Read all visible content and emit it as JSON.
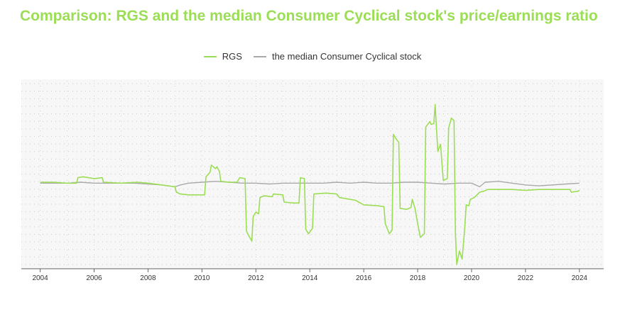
{
  "chart_data": {
    "type": "line",
    "title": "Comparison: RGS and the median Consumer Cyclical stock's price/earnings ratio",
    "xlabel": "",
    "ylabel": "",
    "xlim": [
      2003.3,
      2024.9
    ],
    "ylim": [
      -9,
      11
    ],
    "x_ticks": [
      "2004",
      "2006",
      "2008",
      "2010",
      "2012",
      "2014",
      "2016",
      "2018",
      "2020",
      "2022",
      "2024"
    ],
    "grid": true,
    "legend_position": "top-center",
    "series": [
      {
        "name": "RGS",
        "color": "#9bde55",
        "points": [
          [
            2004.0,
            0.1
          ],
          [
            2004.5,
            0.1
          ],
          [
            2005.0,
            0.0
          ],
          [
            2005.35,
            0.0
          ],
          [
            2005.4,
            0.6
          ],
          [
            2005.6,
            0.7
          ],
          [
            2006.0,
            0.5
          ],
          [
            2006.3,
            0.6
          ],
          [
            2006.35,
            0.1
          ],
          [
            2007.0,
            0.0
          ],
          [
            2007.6,
            0.1
          ],
          [
            2008.0,
            0.0
          ],
          [
            2008.5,
            -0.2
          ],
          [
            2009.0,
            -0.4
          ],
          [
            2009.05,
            -1.0
          ],
          [
            2009.2,
            -1.2
          ],
          [
            2009.5,
            -1.3
          ],
          [
            2010.1,
            -1.3
          ],
          [
            2010.15,
            0.7
          ],
          [
            2010.3,
            1.2
          ],
          [
            2010.35,
            2.0
          ],
          [
            2010.5,
            1.6
          ],
          [
            2010.55,
            1.8
          ],
          [
            2010.65,
            1.3
          ],
          [
            2010.7,
            0.2
          ],
          [
            2011.0,
            0.1
          ],
          [
            2011.3,
            0.1
          ],
          [
            2011.4,
            0.6
          ],
          [
            2011.6,
            0.5
          ],
          [
            2011.65,
            -5.3
          ],
          [
            2011.75,
            -5.9
          ],
          [
            2011.85,
            -6.4
          ],
          [
            2011.9,
            -3.7
          ],
          [
            2012.0,
            -3.2
          ],
          [
            2012.1,
            -3.4
          ],
          [
            2012.15,
            -1.6
          ],
          [
            2012.3,
            -1.4
          ],
          [
            2012.6,
            -1.5
          ],
          [
            2012.65,
            -1.2
          ],
          [
            2013.0,
            -1.3
          ],
          [
            2013.05,
            -2.1
          ],
          [
            2013.4,
            -2.2
          ],
          [
            2013.6,
            -2.2
          ],
          [
            2013.65,
            0.6
          ],
          [
            2013.8,
            0.5
          ],
          [
            2013.85,
            -5.1
          ],
          [
            2013.95,
            -5.6
          ],
          [
            2014.1,
            -5.0
          ],
          [
            2014.15,
            -1.2
          ],
          [
            2014.6,
            -1.1
          ],
          [
            2015.0,
            -1.2
          ],
          [
            2015.1,
            -1.6
          ],
          [
            2015.5,
            -1.8
          ],
          [
            2015.7,
            -1.9
          ],
          [
            2016.0,
            -2.4
          ],
          [
            2016.5,
            -2.5
          ],
          [
            2016.75,
            -2.6
          ],
          [
            2016.8,
            -4.5
          ],
          [
            2016.95,
            -5.6
          ],
          [
            2017.05,
            -5.2
          ],
          [
            2017.1,
            5.4
          ],
          [
            2017.2,
            4.9
          ],
          [
            2017.3,
            4.5
          ],
          [
            2017.35,
            -2.8
          ],
          [
            2017.6,
            -2.9
          ],
          [
            2017.75,
            -2.7
          ],
          [
            2017.8,
            -1.8
          ],
          [
            2017.9,
            -2.8
          ],
          [
            2018.0,
            -4.5
          ],
          [
            2018.1,
            -6.0
          ],
          [
            2018.25,
            -5.6
          ],
          [
            2018.3,
            6.2
          ],
          [
            2018.45,
            6.8
          ],
          [
            2018.5,
            6.5
          ],
          [
            2018.6,
            6.6
          ],
          [
            2018.65,
            8.7
          ],
          [
            2018.7,
            6.0
          ],
          [
            2018.75,
            3.5
          ],
          [
            2018.85,
            4.3
          ],
          [
            2018.95,
            0.3
          ],
          [
            2019.1,
            0.5
          ],
          [
            2019.15,
            6.1
          ],
          [
            2019.25,
            7.2
          ],
          [
            2019.35,
            6.9
          ],
          [
            2019.4,
            -5.5
          ],
          [
            2019.45,
            -9.0
          ],
          [
            2019.55,
            -7.5
          ],
          [
            2019.65,
            -8.4
          ],
          [
            2019.75,
            -4.8
          ],
          [
            2019.8,
            -2.4
          ],
          [
            2019.9,
            -2.5
          ],
          [
            2019.95,
            -1.8
          ],
          [
            2020.1,
            -1.6
          ],
          [
            2020.3,
            -1.0
          ],
          [
            2020.45,
            -0.9
          ],
          [
            2020.6,
            -0.7
          ],
          [
            2021.0,
            -0.7
          ],
          [
            2021.5,
            -0.7
          ],
          [
            2022.0,
            -0.8
          ],
          [
            2022.5,
            -0.7
          ],
          [
            2023.0,
            -0.7
          ],
          [
            2023.5,
            -0.7
          ],
          [
            2023.65,
            -0.7
          ],
          [
            2023.7,
            -1.0
          ],
          [
            2023.95,
            -0.9
          ],
          [
            2024.0,
            -0.8
          ]
        ]
      },
      {
        "name": "the median Consumer Cyclical stock",
        "color": "#a9a9a9",
        "points": [
          [
            2004.0,
            0.0
          ],
          [
            2004.5,
            0.0
          ],
          [
            2005.0,
            0.0
          ],
          [
            2005.5,
            0.1
          ],
          [
            2006.0,
            0.0
          ],
          [
            2006.5,
            0.0
          ],
          [
            2007.0,
            0.0
          ],
          [
            2007.5,
            0.0
          ],
          [
            2008.0,
            -0.1
          ],
          [
            2008.5,
            -0.2
          ],
          [
            2009.0,
            -0.4
          ],
          [
            2009.2,
            -0.2
          ],
          [
            2009.5,
            0.0
          ],
          [
            2010.0,
            0.1
          ],
          [
            2010.5,
            0.2
          ],
          [
            2011.0,
            0.1
          ],
          [
            2011.5,
            0.0
          ],
          [
            2012.0,
            0.0
          ],
          [
            2012.5,
            -0.1
          ],
          [
            2013.0,
            0.0
          ],
          [
            2013.5,
            0.0
          ],
          [
            2014.0,
            0.0
          ],
          [
            2014.5,
            0.0
          ],
          [
            2015.0,
            0.1
          ],
          [
            2015.5,
            0.0
          ],
          [
            2016.0,
            0.1
          ],
          [
            2016.5,
            0.0
          ],
          [
            2017.0,
            0.0
          ],
          [
            2017.5,
            0.1
          ],
          [
            2018.0,
            0.1
          ],
          [
            2018.5,
            0.0
          ],
          [
            2019.0,
            -0.1
          ],
          [
            2019.5,
            0.0
          ],
          [
            2020.0,
            0.0
          ],
          [
            2020.3,
            -0.4
          ],
          [
            2020.5,
            0.1
          ],
          [
            2021.0,
            0.2
          ],
          [
            2021.5,
            0.0
          ],
          [
            2022.0,
            -0.2
          ],
          [
            2022.5,
            -0.3
          ],
          [
            2023.0,
            -0.2
          ],
          [
            2023.5,
            -0.1
          ],
          [
            2024.0,
            0.0
          ]
        ]
      }
    ]
  }
}
